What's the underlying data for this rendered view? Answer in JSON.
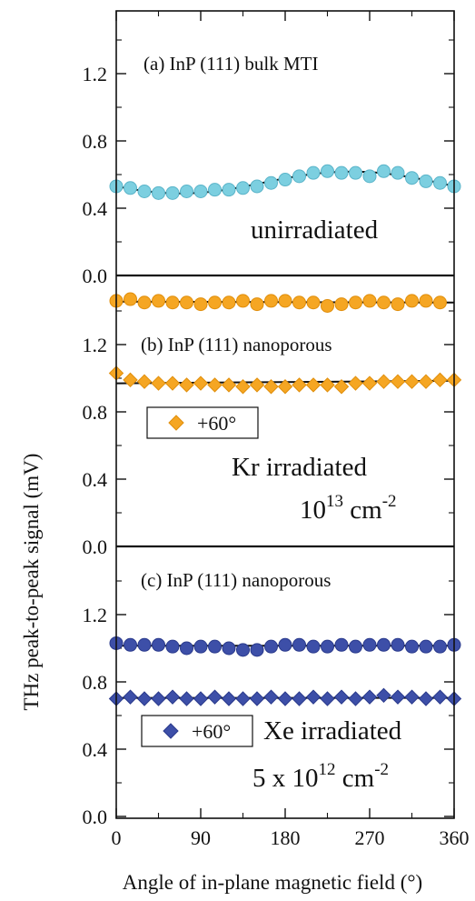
{
  "figure": {
    "ylabel": "THz peak-to-peak signal (mV)",
    "xlabel": "Angle of in-plane magnetic field (°)",
    "x_ticks": [
      "0",
      "90",
      "180",
      "270",
      "360"
    ]
  },
  "panels": {
    "a": {
      "label": "(a) InP (111) bulk MTI",
      "annotation": "unirradiated",
      "y_ticks": [
        "0.0",
        "0.4",
        "0.8",
        "1.2"
      ]
    },
    "b": {
      "label": "(b) InP (111) nanoporous",
      "annotation_line1": "Kr irradiated",
      "annotation_line2_base": "10",
      "annotation_line2_exp": "13",
      "annotation_line2_unit": " cm",
      "annotation_line2_unit_exp": "-2",
      "legend": "+60°",
      "y_ticks": [
        "0.0",
        "0.4",
        "0.8",
        "1.2"
      ]
    },
    "c": {
      "label": "(c) InP (111) nanoporous",
      "annotation_line1": "Xe irradiated",
      "annotation_line2_base": "5 x 10",
      "annotation_line2_exp": "12",
      "annotation_line2_unit": " cm",
      "annotation_line2_unit_exp": "-2",
      "legend": "+60°",
      "y_ticks": [
        "0.0",
        "0.4",
        "0.8",
        "1.2"
      ]
    }
  },
  "colors": {
    "cyan": "#7ccfe0",
    "cyan_edge": "#5ab4c9",
    "orange": "#f5a623",
    "orange_edge": "#e08e0b",
    "blue": "#3d4fa8",
    "blue_edge": "#2a3a8c",
    "axis": "#111111"
  },
  "chart_data": [
    {
      "type": "scatter",
      "panel": "a",
      "x_unit": "degrees",
      "ylim": [
        0,
        1.6
      ],
      "xlim": [
        0,
        360
      ],
      "series": [
        {
          "marker": "circle",
          "x": [
            0,
            15,
            30,
            45,
            60,
            75,
            90,
            105,
            120,
            135,
            150,
            165,
            180,
            195,
            210,
            225,
            240,
            255,
            270,
            285,
            300,
            315,
            330,
            345,
            360
          ],
          "y": [
            0.53,
            0.52,
            0.5,
            0.49,
            0.49,
            0.5,
            0.5,
            0.51,
            0.51,
            0.52,
            0.53,
            0.55,
            0.57,
            0.59,
            0.61,
            0.62,
            0.61,
            0.61,
            0.59,
            0.62,
            0.61,
            0.58,
            0.56,
            0.55,
            0.53
          ]
        },
        {
          "line": "fit",
          "x": [
            0,
            15,
            30,
            45,
            60,
            75,
            90,
            105,
            120,
            135,
            150,
            165,
            180,
            195,
            210,
            225,
            240,
            255,
            270,
            285,
            300,
            315,
            330,
            345,
            360
          ],
          "y": [
            0.53,
            0.515,
            0.502,
            0.493,
            0.488,
            0.488,
            0.492,
            0.5,
            0.512,
            0.527,
            0.544,
            0.561,
            0.578,
            0.592,
            0.604,
            0.612,
            0.617,
            0.618,
            0.615,
            0.608,
            0.597,
            0.583,
            0.567,
            0.549,
            0.53
          ]
        }
      ]
    },
    {
      "type": "scatter",
      "panel": "b",
      "x_unit": "degrees",
      "ylim": [
        0,
        1.6
      ],
      "xlim": [
        0,
        360
      ],
      "series": [
        {
          "marker": "circle",
          "x": [
            0,
            15,
            30,
            45,
            60,
            75,
            90,
            105,
            120,
            135,
            150,
            165,
            180,
            195,
            210,
            225,
            240,
            255,
            270,
            285,
            300,
            315,
            330,
            345
          ],
          "y": [
            1.46,
            1.47,
            1.45,
            1.46,
            1.45,
            1.45,
            1.44,
            1.45,
            1.45,
            1.46,
            1.44,
            1.46,
            1.46,
            1.45,
            1.45,
            1.43,
            1.44,
            1.45,
            1.46,
            1.45,
            1.44,
            1.46,
            1.46,
            1.45
          ]
        },
        {
          "marker": "diamond",
          "x": [
            0,
            15,
            30,
            45,
            60,
            75,
            90,
            105,
            120,
            135,
            150,
            165,
            180,
            195,
            210,
            225,
            240,
            255,
            270,
            285,
            300,
            315,
            330,
            345,
            360
          ],
          "y": [
            1.03,
            0.99,
            0.98,
            0.97,
            0.97,
            0.96,
            0.97,
            0.96,
            0.96,
            0.95,
            0.96,
            0.95,
            0.95,
            0.96,
            0.96,
            0.96,
            0.95,
            0.97,
            0.97,
            0.98,
            0.98,
            0.98,
            0.98,
            0.99,
            0.99
          ]
        },
        {
          "line": "fit",
          "x": [
            0,
            360
          ],
          "y": [
            1.455,
            1.45
          ]
        },
        {
          "line": "fit",
          "x": [
            0,
            360
          ],
          "y": [
            0.97,
            0.985
          ]
        }
      ]
    },
    {
      "type": "scatter",
      "panel": "c",
      "x_unit": "degrees",
      "ylim": [
        0,
        1.6
      ],
      "xlim": [
        0,
        360
      ],
      "series": [
        {
          "marker": "circle",
          "x": [
            0,
            15,
            30,
            45,
            60,
            75,
            90,
            105,
            120,
            135,
            150,
            165,
            180,
            195,
            210,
            225,
            240,
            255,
            270,
            285,
            300,
            315,
            330,
            345,
            360
          ],
          "y": [
            1.03,
            1.02,
            1.02,
            1.02,
            1.01,
            1.0,
            1.01,
            1.01,
            1.0,
            0.99,
            0.99,
            1.01,
            1.02,
            1.02,
            1.01,
            1.01,
            1.02,
            1.01,
            1.02,
            1.02,
            1.02,
            1.01,
            1.01,
            1.01,
            1.02
          ]
        },
        {
          "marker": "diamond",
          "x": [
            0,
            15,
            30,
            45,
            60,
            75,
            90,
            105,
            120,
            135,
            150,
            165,
            180,
            195,
            210,
            225,
            240,
            255,
            270,
            285,
            300,
            315,
            330,
            345,
            360
          ],
          "y": [
            0.7,
            0.71,
            0.7,
            0.7,
            0.71,
            0.7,
            0.7,
            0.71,
            0.7,
            0.7,
            0.7,
            0.71,
            0.7,
            0.7,
            0.71,
            0.7,
            0.71,
            0.7,
            0.71,
            0.72,
            0.71,
            0.71,
            0.7,
            0.71,
            0.7
          ]
        },
        {
          "line": "fit",
          "x": [
            0,
            360
          ],
          "y": [
            1.015,
            1.015
          ]
        },
        {
          "line": "fit",
          "x": [
            0,
            360
          ],
          "y": [
            0.705,
            0.705
          ]
        }
      ]
    }
  ]
}
